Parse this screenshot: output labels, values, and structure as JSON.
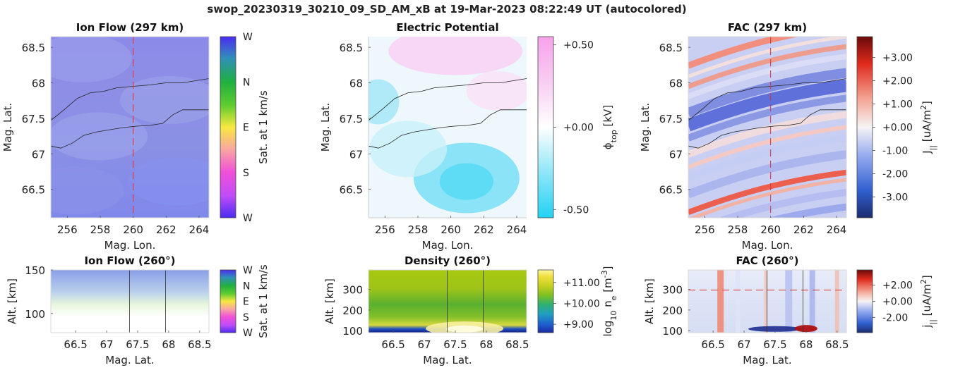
{
  "figure_title": "swop_20230319_30210_09_SD_AM_xB at 19-Mar-2023 08:22:49 UT (autocolored)",
  "colors": {
    "dash_line": "#e03030",
    "contour": "#222222",
    "potential_pos": "#f5a8e8",
    "potential_neg": "#30d0f0"
  },
  "chart_data": [
    {
      "id": "ion-flow-map",
      "type": "heatmap",
      "title": "Ion Flow (297 km)",
      "xlabel": "Mag. Lon.",
      "ylabel": "Mag. Lat.",
      "xlim": [
        255,
        264.6
      ],
      "ylim": [
        66.1,
        68.65
      ],
      "xticks": [
        256,
        258,
        260,
        262,
        264
      ],
      "yticks": [
        66.5,
        67,
        67.5,
        68,
        68.5
      ],
      "ytick_labels": [
        "66.5",
        "67",
        "67.5",
        "68",
        "68.5"
      ],
      "dashed_x": 260,
      "colorbar": {
        "label": "Sat. at 1 km/s",
        "ticks": [
          "W",
          "S",
          "E",
          "N",
          "W"
        ],
        "colormap": "direction"
      }
    },
    {
      "id": "potential-map",
      "type": "heatmap",
      "title": "Electric Potential",
      "xlabel": "Mag. Lon.",
      "ylabel": "Mag. Lat.",
      "xlim": [
        255,
        264.6
      ],
      "ylim": [
        66.1,
        68.65
      ],
      "xticks": [
        256,
        258,
        260,
        262,
        264
      ],
      "yticks": [
        66.5,
        67,
        67.5,
        68,
        68.5
      ],
      "ytick_labels": [
        "66.5",
        "67",
        "67.5",
        "68",
        "68.5"
      ],
      "colorbar": {
        "label": "ϕtop [kV]",
        "label_main": "ϕ",
        "label_sub": "top",
        "label_tail": " [kV]",
        "range": [
          -0.55,
          0.55
        ],
        "ticks": [
          -0.5,
          0,
          0.5
        ],
        "tick_labels": [
          "-0.50",
          "+0.00",
          "+0.50"
        ],
        "colormap": "cyan-white-pink"
      }
    },
    {
      "id": "fac-map",
      "type": "heatmap",
      "title": "FAC (297 km)",
      "xlabel": "Mag. Lon.",
      "ylabel": "Mag. Lat.",
      "xlim": [
        255,
        264.6
      ],
      "ylim": [
        66.1,
        68.65
      ],
      "xticks": [
        256,
        258,
        260,
        262,
        264
      ],
      "yticks": [
        66.5,
        67,
        67.5,
        68,
        68.5
      ],
      "ytick_labels": [
        "66.5",
        "67",
        "67.5",
        "68",
        "68.5"
      ],
      "dashed_x": 260,
      "colorbar": {
        "label": "J|| [uA/m2]",
        "label_main": "J",
        "label_sub": "||",
        "label_tail": " [uA/m",
        "label_sup": "2",
        "label_end": "]",
        "range": [
          -3.9,
          3.9
        ],
        "ticks": [
          -3,
          -2,
          -1,
          0,
          1,
          2,
          3
        ],
        "tick_labels": [
          "-3.00",
          "-2.00",
          "-1.00",
          "+0.00",
          "+1.00",
          "+2.00",
          "+3.00"
        ],
        "colormap": "blue-white-red"
      }
    },
    {
      "id": "ion-flow-alt",
      "type": "heatmap",
      "title": "Ion Flow (260°)",
      "xlabel": "Mag. Lat.",
      "ylabel": "Alt. [km]",
      "xlim": [
        66.1,
        68.65
      ],
      "ylim": [
        78,
        150
      ],
      "xticks": [
        66.5,
        67,
        67.5,
        68,
        68.5
      ],
      "xtick_labels": [
        "66.5",
        "67",
        "67.5",
        "68",
        "68.5"
      ],
      "yticks": [
        100,
        150
      ],
      "vlines": [
        67.37,
        67.95
      ],
      "colorbar": {
        "label": "Sat. at 1 km/s",
        "ticks": [
          "W",
          "S",
          "E",
          "N",
          "W"
        ],
        "colormap": "direction"
      }
    },
    {
      "id": "density-alt",
      "type": "heatmap",
      "title": "Density (260°)",
      "xlabel": "Mag. Lat.",
      "ylabel": "Alt. [km]",
      "xlim": [
        66.1,
        68.65
      ],
      "ylim": [
        90,
        395
      ],
      "xticks": [
        66.5,
        67,
        67.5,
        68,
        68.5
      ],
      "xtick_labels": [
        "66.5",
        "67",
        "67.5",
        "68",
        "68.5"
      ],
      "yticks": [
        100,
        200,
        300
      ],
      "vlines": [
        67.37,
        67.95
      ],
      "colorbar": {
        "label": "log10 ne [m-3]",
        "label_main": "log",
        "label_sub": "10",
        "label_mid": " n",
        "label_sub2": "e",
        "label_tail": " [m",
        "label_sup": "-3",
        "label_end": "]",
        "range": [
          8.6,
          11.6
        ],
        "ticks": [
          9,
          10,
          11
        ],
        "tick_labels": [
          "+9.00",
          "+10.00",
          "+11.00"
        ],
        "colormap": "parula"
      }
    },
    {
      "id": "fac-alt",
      "type": "heatmap",
      "title": "FAC (260°)",
      "xlabel": "Mag. Lat.",
      "ylabel": "Alt. [km]",
      "xlim": [
        66.1,
        68.65
      ],
      "ylim": [
        90,
        395
      ],
      "xticks": [
        66.5,
        67,
        67.5,
        68,
        68.5
      ],
      "xtick_labels": [
        "66.5",
        "67",
        "67.5",
        "68",
        "68.5"
      ],
      "yticks": [
        100,
        200,
        300
      ],
      "vlines": [
        67.37,
        67.95
      ],
      "dashed_y": 297,
      "colorbar": {
        "label": "j|| [uA/m2]",
        "label_main": "j",
        "label_sub": "||",
        "label_tail": " [uA/m",
        "label_sup": "2",
        "label_end": "]",
        "range": [
          -3.9,
          3.9
        ],
        "ticks": [
          -2,
          0,
          2
        ],
        "tick_labels": [
          "-2.00",
          "+0.00",
          "+2.00"
        ],
        "colormap": "blue-white-red"
      }
    }
  ]
}
